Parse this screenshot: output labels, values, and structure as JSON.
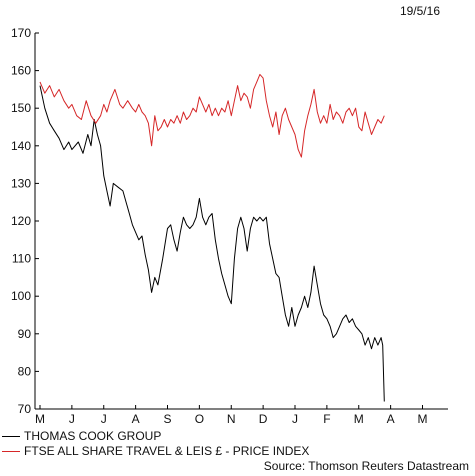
{
  "date_label": "19/5/16",
  "source": "Source: Thomson Reuters Datastream",
  "colors": {
    "series_1": "#000000",
    "series_2": "#d62728",
    "axis": "#000000"
  },
  "chart_data": {
    "type": "line",
    "title": "",
    "xlabel": "",
    "ylabel": "",
    "ylim": [
      70,
      170
    ],
    "yticks": [
      70,
      80,
      90,
      100,
      110,
      120,
      130,
      140,
      150,
      160,
      170
    ],
    "xticks": [
      "M",
      "J",
      "J",
      "A",
      "S",
      "O",
      "N",
      "D",
      "J",
      "F",
      "M",
      "A",
      "M"
    ],
    "legend_position": "bottom-left",
    "grid": false,
    "series": [
      {
        "name": "THOMAS COOK GROUP",
        "color": "#000000",
        "points": [
          [
            0,
            156
          ],
          [
            0.15,
            150
          ],
          [
            0.3,
            146
          ],
          [
            0.45,
            144
          ],
          [
            0.6,
            142
          ],
          [
            0.75,
            139
          ],
          [
            0.9,
            141
          ],
          [
            1.0,
            139
          ],
          [
            1.2,
            141
          ],
          [
            1.35,
            138
          ],
          [
            1.5,
            143
          ],
          [
            1.6,
            140
          ],
          [
            1.7,
            147
          ],
          [
            1.8,
            143
          ],
          [
            1.9,
            140
          ],
          [
            2.0,
            132
          ],
          [
            2.1,
            128
          ],
          [
            2.2,
            124
          ],
          [
            2.3,
            130
          ],
          [
            2.45,
            129
          ],
          [
            2.6,
            128
          ],
          [
            2.7,
            125
          ],
          [
            2.8,
            122
          ],
          [
            2.9,
            119
          ],
          [
            3.0,
            117
          ],
          [
            3.1,
            115
          ],
          [
            3.2,
            116
          ],
          [
            3.3,
            111
          ],
          [
            3.4,
            107
          ],
          [
            3.5,
            101
          ],
          [
            3.6,
            105
          ],
          [
            3.7,
            103
          ],
          [
            3.85,
            110
          ],
          [
            4.0,
            118
          ],
          [
            4.1,
            119
          ],
          [
            4.2,
            115
          ],
          [
            4.3,
            112
          ],
          [
            4.4,
            117
          ],
          [
            4.5,
            121
          ],
          [
            4.6,
            119
          ],
          [
            4.7,
            118
          ],
          [
            4.8,
            119
          ],
          [
            4.9,
            121
          ],
          [
            5.0,
            126
          ],
          [
            5.1,
            121
          ],
          [
            5.2,
            119
          ],
          [
            5.3,
            121
          ],
          [
            5.4,
            122
          ],
          [
            5.5,
            115
          ],
          [
            5.6,
            110
          ],
          [
            5.7,
            106
          ],
          [
            5.8,
            103
          ],
          [
            5.9,
            100
          ],
          [
            6.0,
            98
          ],
          [
            6.1,
            110
          ],
          [
            6.2,
            118
          ],
          [
            6.3,
            121
          ],
          [
            6.4,
            118
          ],
          [
            6.5,
            112
          ],
          [
            6.6,
            118
          ],
          [
            6.7,
            121
          ],
          [
            6.8,
            120
          ],
          [
            6.9,
            121
          ],
          [
            7.0,
            120
          ],
          [
            7.1,
            121
          ],
          [
            7.2,
            114
          ],
          [
            7.3,
            110
          ],
          [
            7.4,
            106
          ],
          [
            7.5,
            105
          ],
          [
            7.6,
            100
          ],
          [
            7.7,
            95
          ],
          [
            7.8,
            92
          ],
          [
            7.9,
            97
          ],
          [
            8.0,
            92
          ],
          [
            8.1,
            95
          ],
          [
            8.2,
            97
          ],
          [
            8.3,
            100
          ],
          [
            8.4,
            97
          ],
          [
            8.5,
            101
          ],
          [
            8.6,
            108
          ],
          [
            8.7,
            103
          ],
          [
            8.8,
            98
          ],
          [
            8.9,
            95
          ],
          [
            9.0,
            94
          ],
          [
            9.1,
            92
          ],
          [
            9.2,
            89
          ],
          [
            9.3,
            90
          ],
          [
            9.4,
            92
          ],
          [
            9.5,
            94
          ],
          [
            9.6,
            95
          ],
          [
            9.7,
            93
          ],
          [
            9.8,
            94
          ],
          [
            9.9,
            92
          ],
          [
            10.0,
            91
          ],
          [
            10.1,
            90
          ],
          [
            10.2,
            87
          ],
          [
            10.3,
            89
          ],
          [
            10.4,
            86
          ],
          [
            10.5,
            89
          ],
          [
            10.6,
            87
          ],
          [
            10.7,
            89
          ],
          [
            10.75,
            87
          ],
          [
            10.8,
            72
          ]
        ]
      },
      {
        "name": "FTSE ALL SHARE TRAVEL & LEIS £ - PRICE INDEX",
        "color": "#d62728",
        "points": [
          [
            0,
            157
          ],
          [
            0.15,
            154
          ],
          [
            0.3,
            156
          ],
          [
            0.45,
            153
          ],
          [
            0.6,
            155
          ],
          [
            0.75,
            152
          ],
          [
            0.9,
            150
          ],
          [
            1.0,
            151
          ],
          [
            1.15,
            148
          ],
          [
            1.3,
            147
          ],
          [
            1.45,
            152
          ],
          [
            1.6,
            148
          ],
          [
            1.75,
            146
          ],
          [
            1.9,
            148
          ],
          [
            2.0,
            151
          ],
          [
            2.1,
            149
          ],
          [
            2.2,
            152
          ],
          [
            2.35,
            155
          ],
          [
            2.5,
            151
          ],
          [
            2.6,
            150
          ],
          [
            2.75,
            152
          ],
          [
            2.9,
            150
          ],
          [
            3.0,
            149
          ],
          [
            3.1,
            151
          ],
          [
            3.2,
            149
          ],
          [
            3.3,
            148
          ],
          [
            3.4,
            146
          ],
          [
            3.5,
            140
          ],
          [
            3.6,
            148
          ],
          [
            3.7,
            144
          ],
          [
            3.8,
            145
          ],
          [
            3.9,
            147
          ],
          [
            4.0,
            145
          ],
          [
            4.1,
            147
          ],
          [
            4.2,
            146
          ],
          [
            4.3,
            148
          ],
          [
            4.4,
            146
          ],
          [
            4.5,
            149
          ],
          [
            4.6,
            147
          ],
          [
            4.7,
            148
          ],
          [
            4.8,
            150
          ],
          [
            4.9,
            149
          ],
          [
            5.0,
            153
          ],
          [
            5.1,
            151
          ],
          [
            5.2,
            149
          ],
          [
            5.3,
            151
          ],
          [
            5.4,
            148
          ],
          [
            5.5,
            150
          ],
          [
            5.6,
            148
          ],
          [
            5.7,
            150
          ],
          [
            5.8,
            149
          ],
          [
            5.9,
            152
          ],
          [
            6.0,
            148
          ],
          [
            6.1,
            152
          ],
          [
            6.2,
            156
          ],
          [
            6.3,
            152
          ],
          [
            6.4,
            154
          ],
          [
            6.5,
            153
          ],
          [
            6.6,
            150
          ],
          [
            6.7,
            155
          ],
          [
            6.8,
            157
          ],
          [
            6.9,
            159
          ],
          [
            7.0,
            158
          ],
          [
            7.1,
            152
          ],
          [
            7.2,
            148
          ],
          [
            7.3,
            145
          ],
          [
            7.4,
            149
          ],
          [
            7.5,
            143
          ],
          [
            7.6,
            148
          ],
          [
            7.7,
            150
          ],
          [
            7.8,
            147
          ],
          [
            7.9,
            145
          ],
          [
            8.0,
            143
          ],
          [
            8.1,
            139
          ],
          [
            8.2,
            137
          ],
          [
            8.3,
            144
          ],
          [
            8.4,
            148
          ],
          [
            8.5,
            151
          ],
          [
            8.6,
            155
          ],
          [
            8.7,
            149
          ],
          [
            8.8,
            146
          ],
          [
            8.9,
            148
          ],
          [
            9.0,
            146
          ],
          [
            9.1,
            151
          ],
          [
            9.2,
            147
          ],
          [
            9.3,
            149
          ],
          [
            9.4,
            148
          ],
          [
            9.5,
            146
          ],
          [
            9.6,
            149
          ],
          [
            9.7,
            150
          ],
          [
            9.8,
            148
          ],
          [
            9.9,
            150
          ],
          [
            10.0,
            145
          ],
          [
            10.1,
            144
          ],
          [
            10.2,
            149
          ],
          [
            10.3,
            146
          ],
          [
            10.4,
            143
          ],
          [
            10.5,
            145
          ],
          [
            10.6,
            147
          ],
          [
            10.7,
            146
          ],
          [
            10.8,
            148
          ]
        ]
      }
    ]
  }
}
